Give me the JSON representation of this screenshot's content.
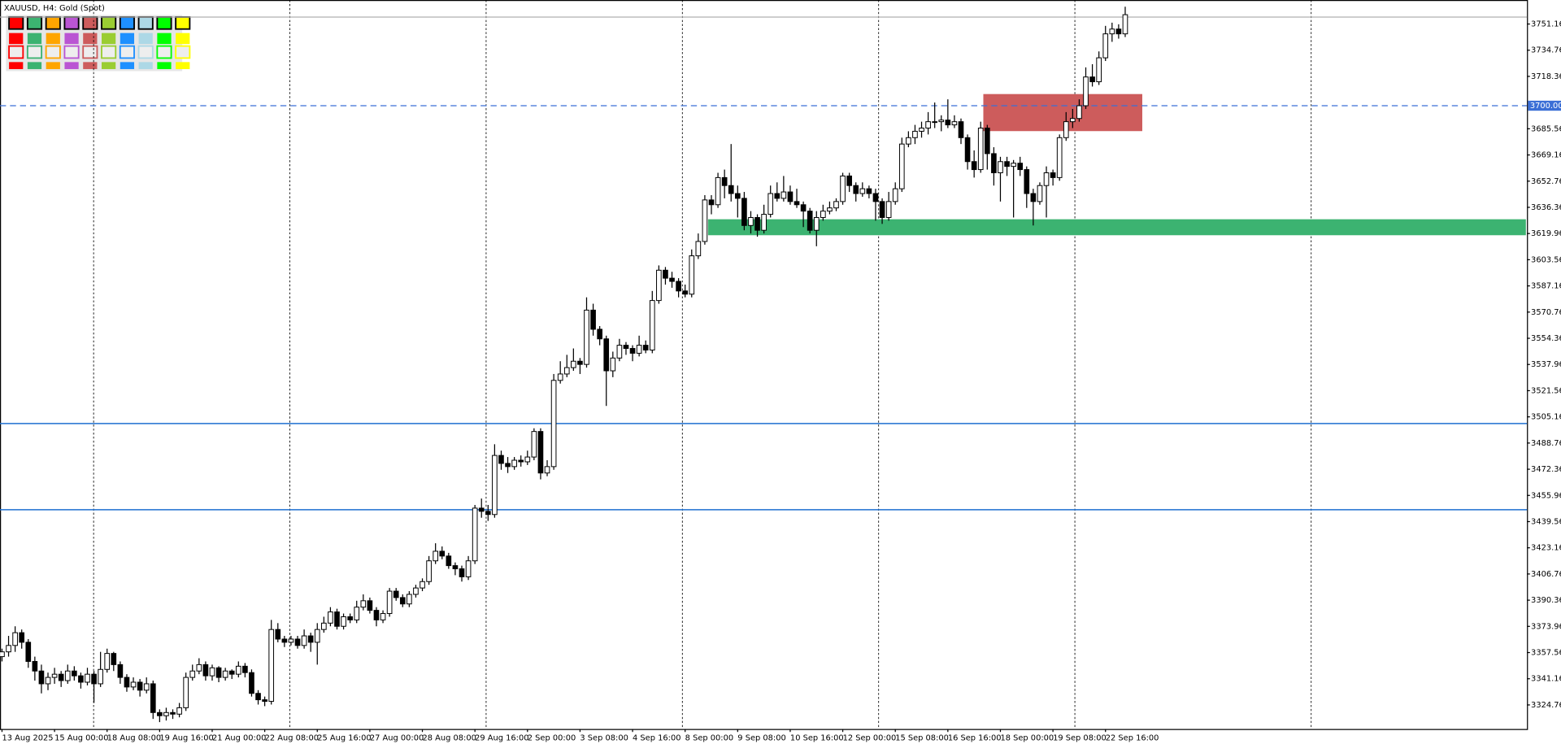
{
  "chart_data": {
    "type": "candlestick",
    "title": "XAUUSD, H4:  Gold (Spot)",
    "categories": [
      "13 Aug 2025",
      null,
      null,
      null,
      null,
      null,
      null,
      null,
      "15 Aug 00:00",
      null,
      null,
      null,
      null,
      null,
      null,
      null,
      "18 Aug 08:00",
      null,
      null,
      null,
      null,
      null,
      null,
      null,
      "19 Aug 16:00",
      null,
      null,
      null,
      null,
      null,
      null,
      null,
      "21 Aug 00:00",
      null,
      null,
      null,
      null,
      null,
      null,
      null,
      "22 Aug 08:00",
      null,
      null,
      null,
      null,
      null,
      null,
      null,
      "25 Aug 16:00",
      null,
      null,
      null,
      null,
      null,
      null,
      null,
      "27 Aug 00:00",
      null,
      null,
      null,
      null,
      null,
      null,
      null,
      "28 Aug 08:00",
      null,
      null,
      null,
      null,
      null,
      null,
      null,
      "29 Aug 16:00",
      null,
      null,
      null,
      null,
      null,
      null,
      null,
      "2 Sep 00:00",
      null,
      null,
      null,
      null,
      null,
      null,
      null,
      "3 Sep 08:00",
      null,
      null,
      null,
      null,
      null,
      null,
      null,
      "4 Sep 16:00",
      null,
      null,
      null,
      null,
      null,
      null,
      null,
      "8 Sep 00:00",
      null,
      null,
      null,
      null,
      null,
      null,
      null,
      "9 Sep 08:00",
      null,
      null,
      null,
      null,
      null,
      null,
      null,
      "10 Sep 16:00",
      null,
      null,
      null,
      null,
      null,
      null,
      null,
      "12 Sep 00:00",
      null,
      null,
      null,
      null,
      null,
      null,
      null,
      "15 Sep 08:00",
      null,
      null,
      null,
      null,
      null,
      null,
      null,
      "16 Sep 16:00",
      null,
      null,
      null,
      null,
      null,
      null,
      null,
      "18 Sep 00:00",
      null,
      null,
      null,
      null,
      null,
      null,
      null,
      "19 Sep 08:00",
      null,
      null,
      null,
      null,
      null,
      null,
      null,
      "22 Sep 16:00",
      null,
      null,
      null
    ],
    "open": [
      3355,
      3358,
      3362,
      3370,
      3364,
      3352,
      3346,
      3338,
      3342,
      3344,
      3340,
      3346,
      3343,
      3339,
      3344,
      3338,
      3347,
      3357,
      3350,
      3342,
      3336,
      3339,
      3334,
      3338,
      3320,
      3318,
      3320,
      3319,
      3323,
      3342,
      3346,
      3350,
      3343,
      3348,
      3342,
      3346,
      3344,
      3349,
      3345,
      3332,
      3328,
      3327,
      3372,
      3366,
      3364,
      3366,
      3362,
      3368,
      3364,
      3372,
      3376,
      3383,
      3374,
      3380,
      3378,
      3386,
      3390,
      3384,
      3378,
      3382,
      3396,
      3392,
      3388,
      3394,
      3398,
      3402,
      3415,
      3421,
      3418,
      3412,
      3410,
      3405,
      3415,
      3448,
      3446,
      3444,
      3481,
      3476,
      3474,
      3478,
      3477,
      3480,
      3496,
      3470,
      3474,
      3528,
      3532,
      3536,
      3540,
      3538,
      3572,
      3560,
      3554,
      3534,
      3542,
      3550,
      3548,
      3545,
      3550,
      3547,
      3578,
      3597,
      3592,
      3590,
      3584,
      3582,
      3606,
      3615,
      3641,
      3638,
      3655,
      3650,
      3645,
      3642,
      3625,
      3630,
      3622,
      3632,
      3645,
      3642,
      3646,
      3640,
      3638,
      3634,
      3622,
      3630,
      3634,
      3636,
      3640,
      3656,
      3650,
      3645,
      3648,
      3645,
      3640,
      3630,
      3640,
      3648,
      3676,
      3680,
      3684,
      3686,
      3690,
      3690,
      3691,
      3688,
      3690,
      3680,
      3665,
      3660,
      3686,
      3670,
      3658,
      3665,
      3662,
      3664,
      3660,
      3645,
      3640,
      3650,
      3658,
      3655,
      3680,
      3690,
      3692,
      3700,
      3718,
      3715,
      3730,
      3745,
      3748,
      3745
    ],
    "high": [
      3360,
      3368,
      3374,
      3372,
      3366,
      3355,
      3350,
      3345,
      3348,
      3346,
      3350,
      3349,
      3345,
      3348,
      3346,
      3358,
      3360,
      3358,
      3352,
      3344,
      3342,
      3341,
      3342,
      3340,
      3322,
      3323,
      3322,
      3326,
      3345,
      3350,
      3354,
      3352,
      3350,
      3349,
      3348,
      3347,
      3352,
      3351,
      3347,
      3334,
      3330,
      3378,
      3376,
      3368,
      3368,
      3368,
      3372,
      3370,
      3376,
      3380,
      3386,
      3385,
      3382,
      3382,
      3390,
      3394,
      3392,
      3386,
      3384,
      3398,
      3398,
      3394,
      3396,
      3400,
      3404,
      3418,
      3426,
      3424,
      3420,
      3414,
      3412,
      3418,
      3450,
      3454,
      3450,
      3488,
      3484,
      3480,
      3480,
      3481,
      3484,
      3498,
      3498,
      3478,
      3532,
      3540,
      3544,
      3548,
      3542,
      3580,
      3576,
      3562,
      3556,
      3546,
      3554,
      3552,
      3550,
      3556,
      3553,
      3584,
      3600,
      3599,
      3596,
      3592,
      3588,
      3610,
      3620,
      3644,
      3644,
      3658,
      3660,
      3676,
      3650,
      3646,
      3634,
      3632,
      3638,
      3650,
      3652,
      3656,
      3650,
      3648,
      3640,
      3636,
      3634,
      3638,
      3640,
      3642,
      3658,
      3658,
      3652,
      3652,
      3650,
      3648,
      3642,
      3646,
      3652,
      3680,
      3684,
      3688,
      3690,
      3696,
      3702,
      3694,
      3704,
      3694,
      3692,
      3682,
      3672,
      3690,
      3688,
      3674,
      3668,
      3668,
      3666,
      3668,
      3662,
      3648,
      3652,
      3662,
      3660,
      3682,
      3696,
      3698,
      3704,
      3724,
      3726,
      3734,
      3750,
      3752,
      3751,
      3762
    ],
    "low": [
      3352,
      3355,
      3358,
      3360,
      3348,
      3340,
      3332,
      3334,
      3338,
      3336,
      3338,
      3340,
      3335,
      3337,
      3326,
      3336,
      3345,
      3346,
      3338,
      3333,
      3334,
      3330,
      3332,
      3316,
      3314,
      3315,
      3316,
      3317,
      3321,
      3340,
      3344,
      3340,
      3340,
      3339,
      3340,
      3341,
      3342,
      3342,
      3330,
      3325,
      3324,
      3325,
      3364,
      3361,
      3362,
      3360,
      3360,
      3358,
      3350,
      3370,
      3374,
      3372,
      3372,
      3376,
      3376,
      3384,
      3382,
      3374,
      3376,
      3380,
      3390,
      3386,
      3386,
      3392,
      3396,
      3400,
      3413,
      3416,
      3410,
      3406,
      3402,
      3403,
      3413,
      3442,
      3440,
      3442,
      3472,
      3470,
      3472,
      3474,
      3475,
      3478,
      3466,
      3468,
      3472,
      3526,
      3530,
      3534,
      3532,
      3536,
      3556,
      3550,
      3512,
      3530,
      3540,
      3544,
      3540,
      3543,
      3545,
      3545,
      3576,
      3588,
      3586,
      3580,
      3580,
      3580,
      3604,
      3613,
      3632,
      3636,
      3642,
      3640,
      3630,
      3622,
      3620,
      3618,
      3620,
      3630,
      3640,
      3640,
      3638,
      3636,
      3624,
      3620,
      3612,
      3628,
      3632,
      3634,
      3638,
      3646,
      3640,
      3643,
      3642,
      3628,
      3626,
      3628,
      3638,
      3646,
      3674,
      3676,
      3680,
      3682,
      3686,
      3684,
      3686,
      3686,
      3676,
      3660,
      3655,
      3658,
      3660,
      3650,
      3640,
      3656,
      3630,
      3656,
      3636,
      3625,
      3638,
      3630,
      3650,
      3653,
      3678,
      3686,
      3690,
      3698,
      3712,
      3713,
      3728,
      3740,
      3742,
      3743
    ],
    "close": [
      3358,
      3362,
      3370,
      3364,
      3352,
      3346,
      3338,
      3342,
      3344,
      3340,
      3346,
      3343,
      3339,
      3344,
      3338,
      3347,
      3357,
      3350,
      3342,
      3336,
      3339,
      3334,
      3338,
      3320,
      3318,
      3320,
      3319,
      3323,
      3342,
      3346,
      3350,
      3343,
      3348,
      3342,
      3346,
      3344,
      3349,
      3345,
      3332,
      3328,
      3327,
      3372,
      3366,
      3364,
      3366,
      3362,
      3368,
      3364,
      3372,
      3376,
      3383,
      3374,
      3380,
      3378,
      3386,
      3390,
      3384,
      3378,
      3382,
      3396,
      3392,
      3388,
      3394,
      3398,
      3402,
      3415,
      3421,
      3418,
      3412,
      3410,
      3405,
      3415,
      3448,
      3446,
      3444,
      3481,
      3476,
      3474,
      3478,
      3477,
      3480,
      3496,
      3470,
      3474,
      3528,
      3532,
      3536,
      3540,
      3538,
      3572,
      3560,
      3554,
      3534,
      3542,
      3550,
      3548,
      3545,
      3550,
      3547,
      3578,
      3597,
      3592,
      3590,
      3584,
      3582,
      3606,
      3615,
      3641,
      3638,
      3655,
      3650,
      3645,
      3642,
      3625,
      3630,
      3622,
      3632,
      3645,
      3642,
      3646,
      3640,
      3638,
      3634,
      3622,
      3630,
      3634,
      3636,
      3640,
      3656,
      3650,
      3645,
      3648,
      3645,
      3640,
      3630,
      3640,
      3648,
      3676,
      3680,
      3684,
      3686,
      3690,
      3690,
      3691,
      3688,
      3690,
      3680,
      3665,
      3660,
      3686,
      3670,
      3658,
      3665,
      3662,
      3664,
      3660,
      3645,
      3640,
      3650,
      3658,
      3655,
      3680,
      3690,
      3692,
      3700,
      3718,
      3715,
      3730,
      3745,
      3748,
      3745,
      3757
    ],
    "ylim": [
      3309.7,
      3766.2
    ],
    "yticks": [
      3324.76,
      3341.16,
      3357.56,
      3373.96,
      3390.36,
      3406.76,
      3423.16,
      3439.56,
      3455.96,
      3472.36,
      3488.76,
      3505.16,
      3521.56,
      3537.96,
      3554.36,
      3570.76,
      3587.16,
      3603.56,
      3619.96,
      3636.36,
      3652.76,
      3669.16,
      3685.56,
      3718.36,
      3734.76,
      3751.16
    ],
    "price_line": {
      "value": 3700,
      "label": "3700.00",
      "color": "#3b6fd6"
    },
    "bid_line": {
      "value": 3755.5,
      "color": "#b0b0b0"
    },
    "horizontal_lines": {
      "values": [
        3501,
        3447
      ],
      "color": "#1e6fd0"
    },
    "zones": [
      {
        "low": 3618.9,
        "high": 3628.9,
        "start": 107.5,
        "end": 232,
        "color": "#3cb371"
      },
      {
        "low": 3684.1,
        "high": 3707.3,
        "start": 149.4,
        "end": 173.6,
        "color": "#cd5c5c"
      }
    ]
  }
}
